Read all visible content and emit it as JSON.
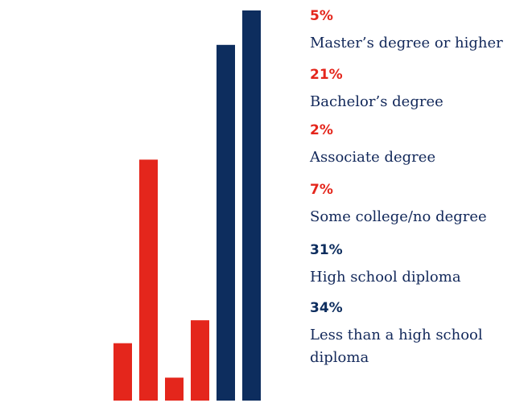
{
  "chart_data": {
    "type": "bar",
    "categories": [
      "Master’s degree or higher",
      "Bachelor’s degree",
      "Associate degree",
      "Some college/no degree",
      "High school diploma",
      "Less than a high school diploma"
    ],
    "values": [
      5,
      21,
      2,
      7,
      31,
      34
    ],
    "value_labels": [
      "5%",
      "21%",
      "2%",
      "7%",
      "31%",
      "34%"
    ],
    "ylim": [
      0,
      34
    ],
    "title": "",
    "xlabel": "",
    "ylabel": "",
    "grid": false,
    "legend": "right",
    "colors": [
      "#e4261c",
      "#e4261c",
      "#e4261c",
      "#e4261c",
      "#0d2d5e",
      "#0d2d5e"
    ]
  }
}
